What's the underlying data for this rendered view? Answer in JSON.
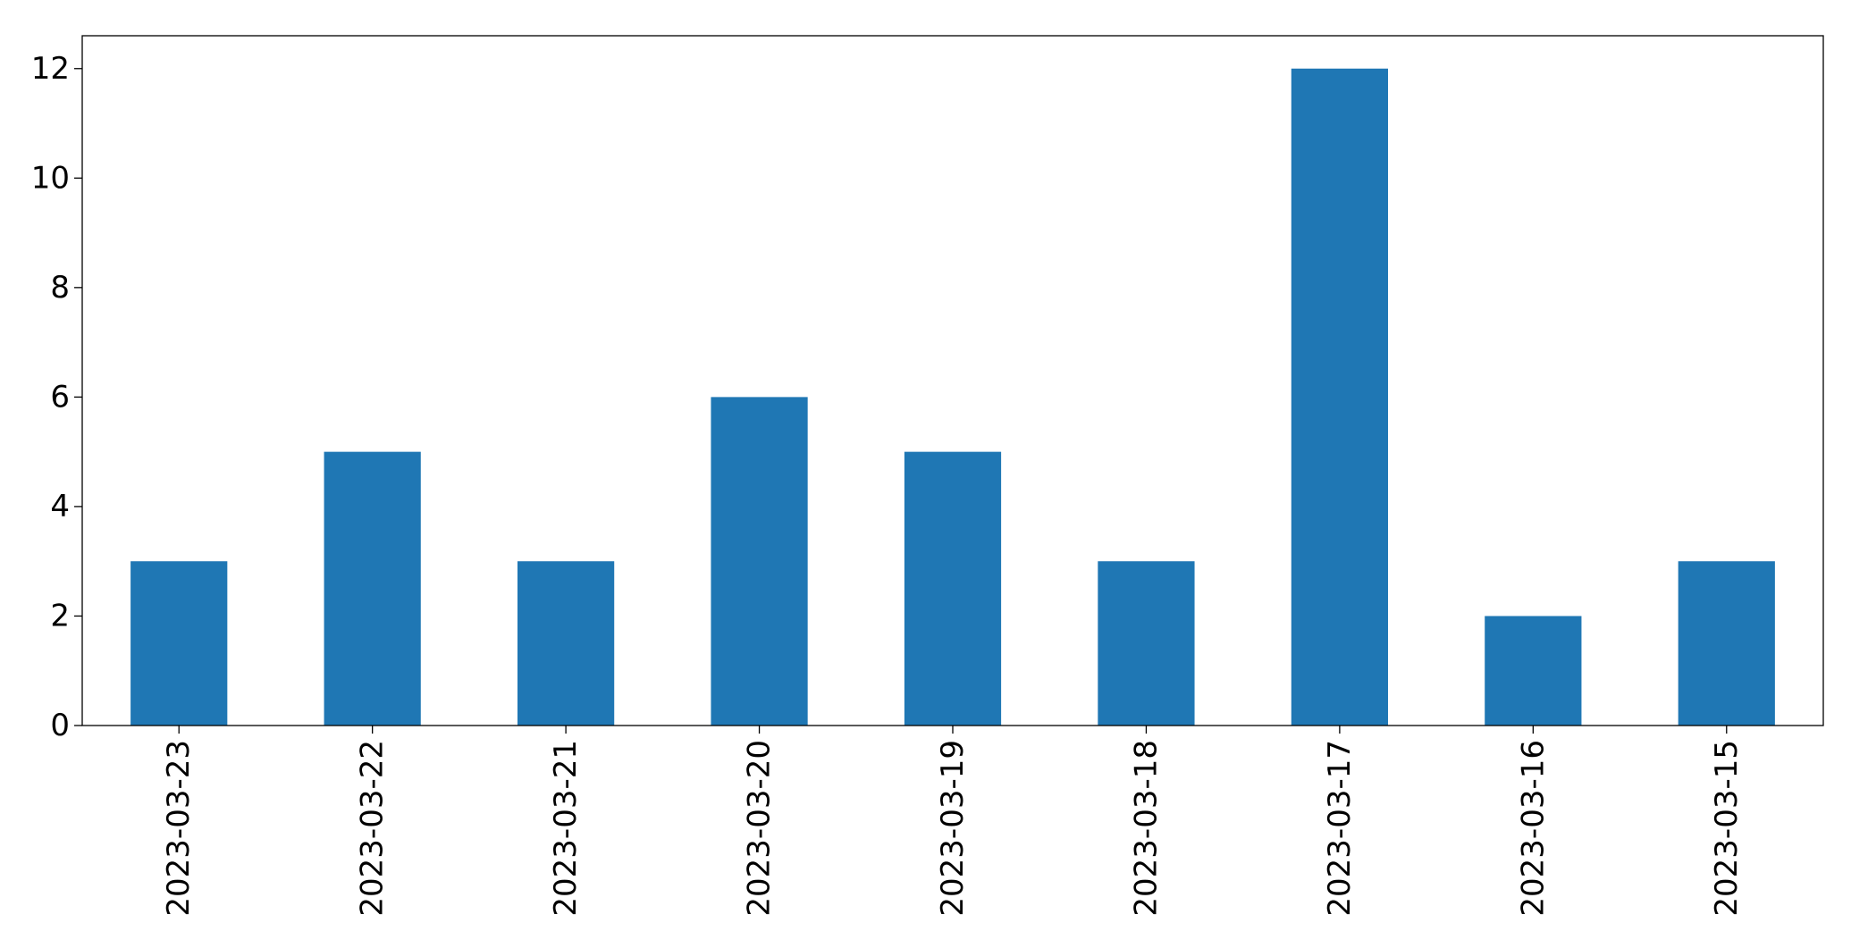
{
  "chart_data": {
    "type": "bar",
    "title": "",
    "xlabel": "",
    "ylabel": "",
    "categories": [
      "2023-03-23",
      "2023-03-22",
      "2023-03-21",
      "2023-03-20",
      "2023-03-19",
      "2023-03-18",
      "2023-03-17",
      "2023-03-16",
      "2023-03-15"
    ],
    "values": [
      3,
      5,
      3,
      6,
      5,
      3,
      12,
      2,
      3
    ],
    "ylim": [
      0,
      12.6
    ],
    "yticks": [
      0,
      2,
      4,
      6,
      8,
      10,
      12
    ],
    "bar_color": "#1f77b4",
    "grid": false,
    "legend": false
  }
}
